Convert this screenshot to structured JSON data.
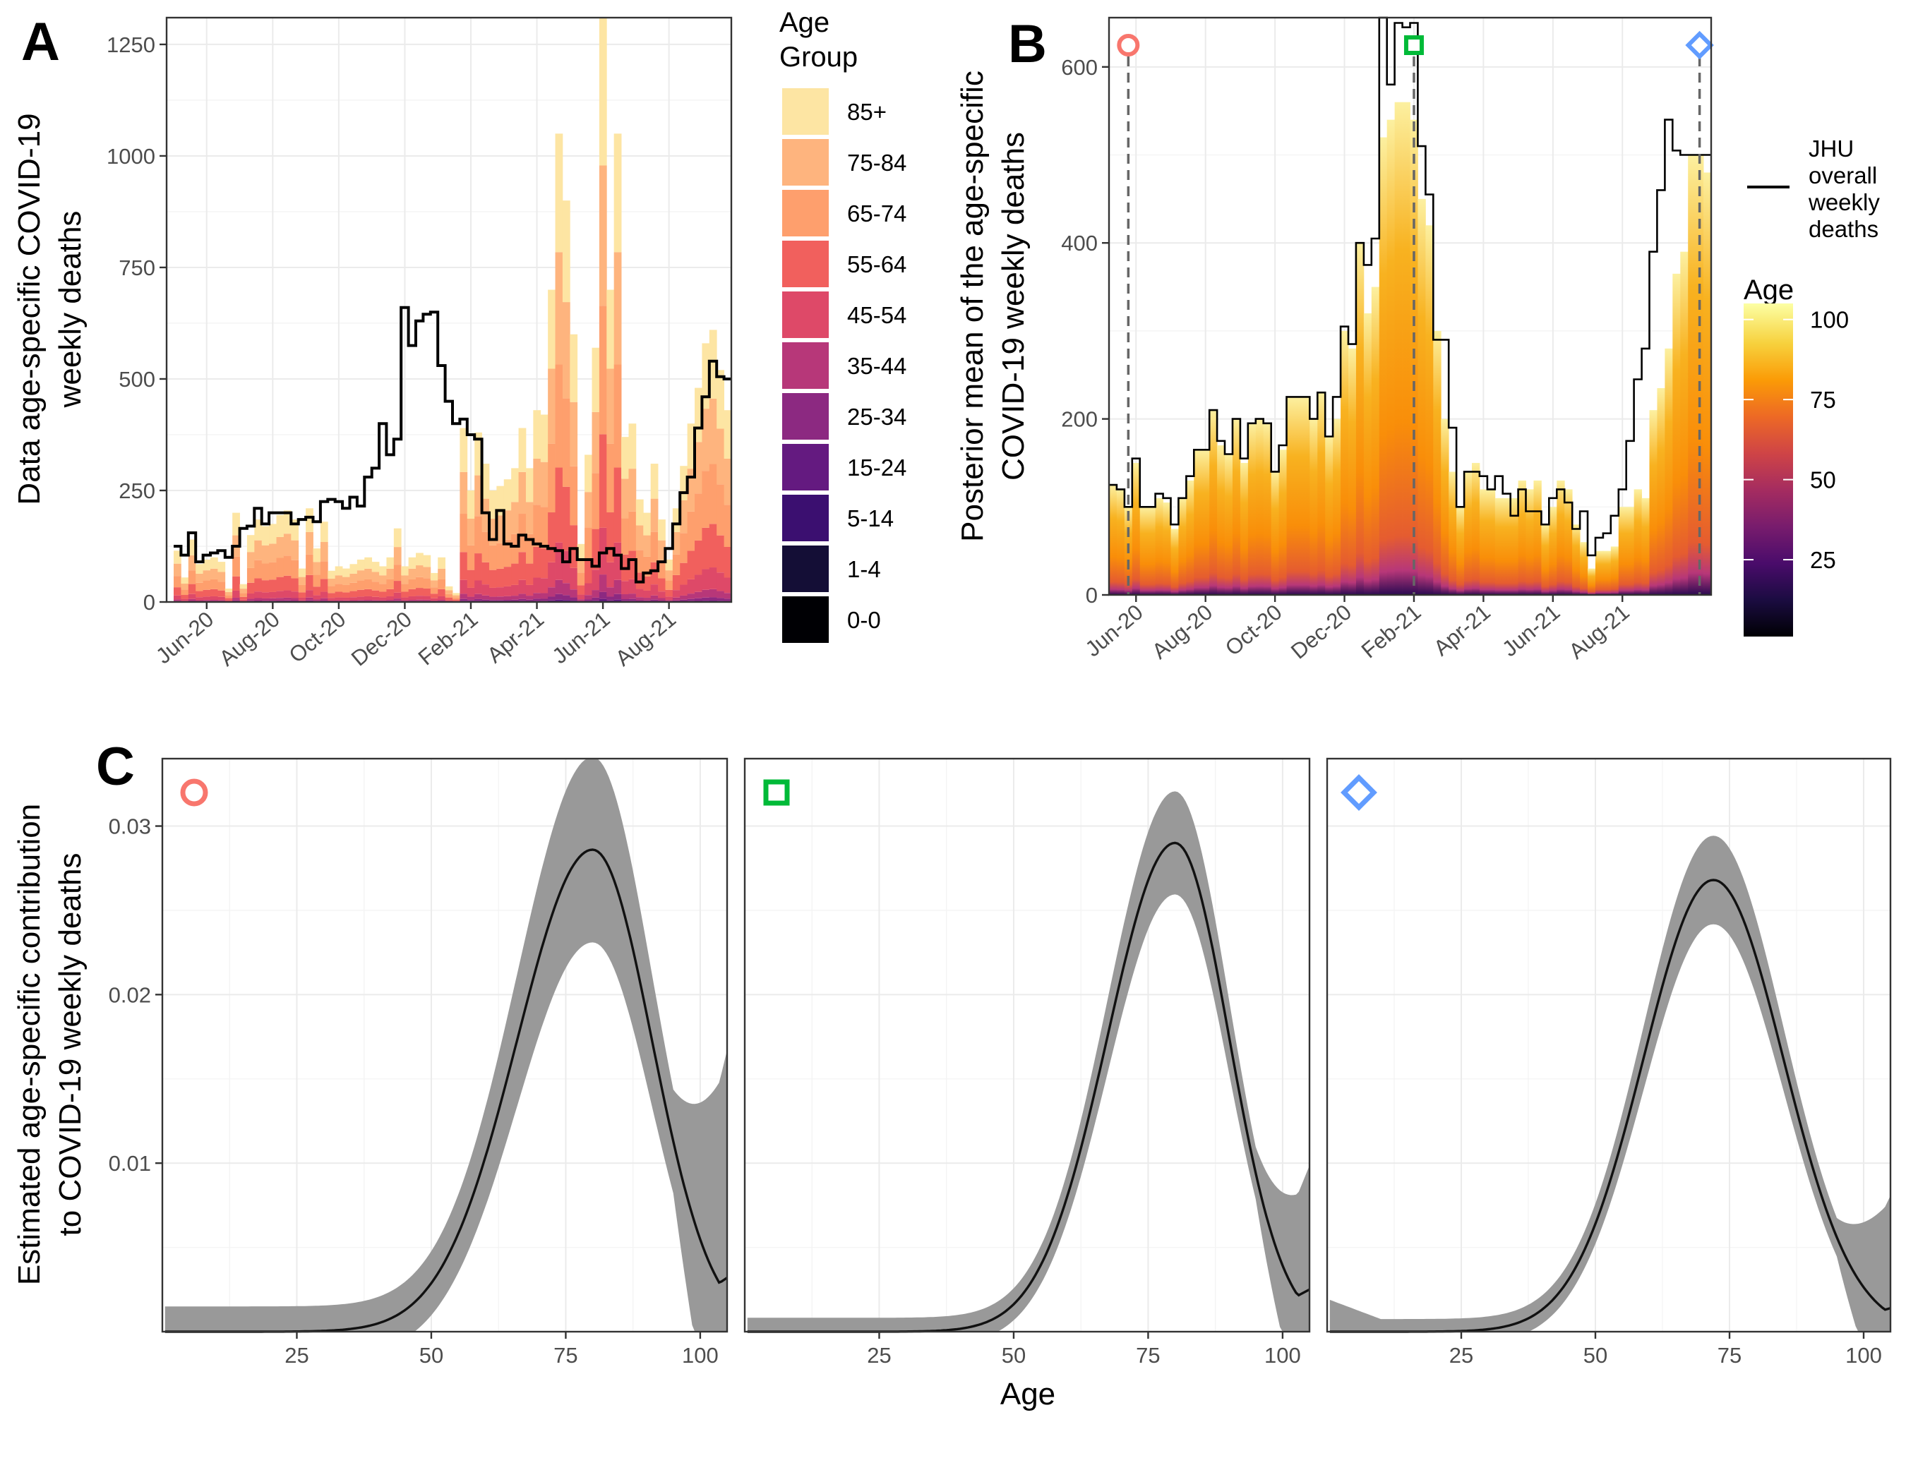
{
  "panels": {
    "a_letter": "A",
    "b_letter": "B",
    "c_letter": "C"
  },
  "chart_data": [
    {
      "id": "A",
      "type": "bar",
      "stacked": true,
      "ylabel_line1": "Data age-specific COVID-19",
      "ylabel_line2": "weekly deaths",
      "ylim": [
        0,
        1310
      ],
      "yticks": [
        0,
        250,
        500,
        750,
        1000,
        1250
      ],
      "x_ticks": [
        "Jun-20",
        "Aug-20",
        "Oct-20",
        "Dec-20",
        "Feb-21",
        "Apr-21",
        "Jun-21",
        "Aug-21"
      ],
      "x_tick_weeks": [
        4,
        13,
        22,
        31,
        40,
        49,
        58,
        67
      ],
      "n_weeks": 76,
      "age_groups": [
        "0-0",
        "1-4",
        "5-14",
        "15-24",
        "25-34",
        "35-44",
        "45-54",
        "55-64",
        "65-74",
        "75-84",
        "85+"
      ],
      "colors": [
        "#000004",
        "#140e36",
        "#3b0f70",
        "#641a80",
        "#8c2981",
        "#b73779",
        "#de4968",
        "#f1605d",
        "#fe9f6d",
        "#feb47e",
        "#fde5a3"
      ],
      "group_shares": [
        0.0,
        0.0,
        0.0,
        0.005,
        0.012,
        0.03,
        0.08,
        0.16,
        0.22,
        0.24,
        0.253
      ],
      "weekly_totals": [
        115,
        55,
        140,
        85,
        95,
        100,
        90,
        30,
        200,
        40,
        150,
        185,
        170,
        175,
        195,
        205,
        185,
        75,
        210,
        120,
        180,
        70,
        80,
        75,
        85,
        95,
        100,
        90,
        80,
        100,
        165,
        80,
        100,
        110,
        105,
        65,
        100,
        35,
        20,
        390,
        250,
        380,
        310,
        250,
        260,
        275,
        300,
        390,
        300,
        430,
        420,
        700,
        1050,
        900,
        600,
        130,
        330,
        570,
        1310,
        700,
        1050,
        370,
        400,
        230,
        200,
        310,
        185,
        95,
        210,
        305,
        400,
        480,
        580,
        610,
        520,
        430
      ],
      "jhu_line": [
        125,
        105,
        155,
        90,
        105,
        110,
        115,
        100,
        125,
        165,
        170,
        210,
        175,
        200,
        200,
        200,
        175,
        185,
        190,
        180,
        225,
        230,
        225,
        210,
        235,
        215,
        280,
        300,
        400,
        330,
        365,
        660,
        575,
        630,
        645,
        650,
        530,
        450,
        400,
        410,
        375,
        365,
        200,
        140,
        205,
        130,
        125,
        150,
        140,
        130,
        125,
        120,
        115,
        90,
        120,
        95,
        95,
        80,
        110,
        120,
        105,
        75,
        95,
        45,
        65,
        70,
        90,
        120,
        175,
        245,
        280,
        390,
        460,
        540,
        505,
        500
      ],
      "legend_title_line1": "Age",
      "legend_title_line2": "Group",
      "legend_items": [
        "85+",
        "75-84",
        "65-74",
        "55-64",
        "45-54",
        "35-44",
        "25-34",
        "15-24",
        "5-14",
        "1-4",
        "0-0"
      ]
    },
    {
      "id": "B",
      "type": "bar",
      "stacked": true,
      "ylabel_line1": "Posterior mean of the age-specific",
      "ylabel_line2": "COVID-19 weekly deaths",
      "ylim": [
        0,
        656
      ],
      "yticks": [
        0,
        200,
        400,
        600
      ],
      "x_ticks": [
        "Jun-20",
        "Aug-20",
        "Oct-20",
        "Dec-20",
        "Feb-21",
        "Apr-21",
        "Jun-21",
        "Aug-21"
      ],
      "x_tick_weeks": [
        3,
        12,
        21,
        30,
        39,
        48,
        57,
        66
      ],
      "n_weeks": 78,
      "weekly_totals": [
        125,
        120,
        100,
        150,
        100,
        100,
        110,
        105,
        75,
        110,
        130,
        165,
        165,
        210,
        170,
        160,
        200,
        150,
        195,
        200,
        195,
        140,
        165,
        225,
        225,
        225,
        200,
        230,
        180,
        200,
        300,
        280,
        400,
        320,
        350,
        520,
        540,
        560,
        560,
        540,
        450,
        420,
        300,
        200,
        140,
        100,
        140,
        150,
        120,
        120,
        110,
        110,
        110,
        130,
        120,
        130,
        80,
        100,
        130,
        120,
        80,
        60,
        30,
        50,
        50,
        55,
        100,
        100,
        120,
        110,
        210,
        235,
        280,
        365,
        390,
        500,
        500,
        480
      ],
      "jhu_line": [
        125,
        120,
        100,
        155,
        100,
        100,
        115,
        110,
        80,
        110,
        135,
        165,
        165,
        210,
        175,
        160,
        200,
        155,
        195,
        200,
        195,
        140,
        170,
        225,
        225,
        225,
        200,
        230,
        180,
        225,
        305,
        285,
        400,
        375,
        405,
        690,
        580,
        650,
        645,
        650,
        510,
        455,
        290,
        290,
        190,
        100,
        140,
        140,
        135,
        120,
        135,
        115,
        90,
        120,
        95,
        95,
        80,
        110,
        120,
        105,
        75,
        95,
        45,
        65,
        70,
        90,
        120,
        175,
        245,
        280,
        390,
        460,
        540,
        505,
        500,
        500,
        500,
        500
      ],
      "markers": [
        {
          "shape": "circle",
          "color": "#f8766d",
          "week": 2
        },
        {
          "shape": "square",
          "color": "#00ba38",
          "week": 39
        },
        {
          "shape": "diamond",
          "color": "#619cff",
          "week": 76
        }
      ],
      "line_legend_text": [
        "JHU",
        "overall",
        "weekly",
        "deaths"
      ],
      "colorbar_title": "Age",
      "colorbar_ticks": [
        25,
        50,
        75,
        100
      ],
      "colorbar_range": [
        1,
        105
      ],
      "colorbar_stops": [
        "#000004",
        "#1b0c41",
        "#4a0c6b",
        "#781c6d",
        "#a52c60",
        "#cf4446",
        "#ed6925",
        "#fb9b06",
        "#f7d13d",
        "#fcffa4"
      ]
    },
    {
      "id": "C",
      "type": "line",
      "ylabel_line1": "Estimated age-specific contribution",
      "ylabel_line2": "to COVID-19 weekly deaths",
      "xlabel": "Age",
      "xlim": [
        0,
        105
      ],
      "ylim": [
        0,
        0.034
      ],
      "xticks": [
        25,
        50,
        75,
        100
      ],
      "yticks": [
        0.01,
        0.02,
        0.03
      ],
      "ytick_labels": [
        "0.01",
        "0.02",
        "0.03"
      ],
      "series": [
        {
          "name": "circle",
          "marker_color": "#f8766d",
          "peak_age": 80,
          "peak": 0.0286,
          "sd_left": 14,
          "sd_right": 11,
          "end": 0.0032,
          "ci_scale": 1.0
        },
        {
          "name": "square",
          "marker_color": "#00ba38",
          "peak_age": 80,
          "peak": 0.029,
          "sd_left": 12.5,
          "sd_right": 10,
          "end": 0.0025,
          "ci_scale": 0.55
        },
        {
          "name": "diamond",
          "marker_color": "#619cff",
          "peak_age": 72,
          "peak": 0.0268,
          "sd_left": 13,
          "sd_right": 13,
          "end": 0.0014,
          "ci_scale": 0.5
        }
      ]
    }
  ]
}
